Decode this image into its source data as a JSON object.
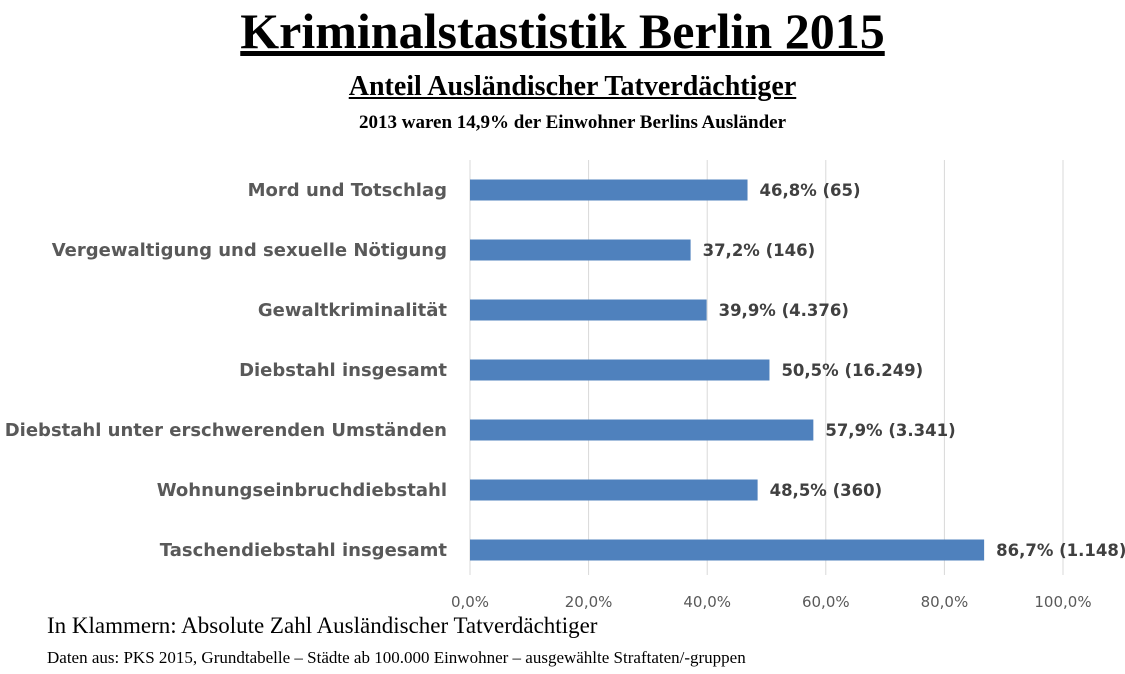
{
  "title": "Kriminalstastistik Berlin 2015",
  "subtitle": "Anteil Ausländischer Tatverdächtiger",
  "note": "2013 waren 14,9% der Einwohner Berlins Ausländer",
  "footnote_1": "In Klammern: Absolute Zahl Ausländischer Tatverdächtiger",
  "footnote_2": "Daten aus: PKS 2015, Grundtabelle – Städte ab 100.000 Einwohner – ausgewählte Straftaten/-gruppen",
  "chart_data": {
    "type": "bar",
    "orientation": "horizontal",
    "categories": [
      "Mord und Totschlag",
      "Vergewaltigung und sexuelle Nötigung",
      "Gewaltkriminalität",
      "Diebstahl insgesamt",
      "Diebstahl unter erschwerenden Umständen",
      "Wohnungseinbruchdiebstahl",
      "Taschendiebstahl insgesamt"
    ],
    "values": [
      46.8,
      37.2,
      39.9,
      50.5,
      57.9,
      48.5,
      86.7
    ],
    "data_labels": [
      "46,8% (65)",
      "37,2% (146)",
      "39,9% (4.376)",
      "50,5% (16.249)",
      "57,9% (3.341)",
      "48,5% (360)",
      "86,7% (1.148)"
    ],
    "x_ticks": [
      "0,0%",
      "20,0%",
      "40,0%",
      "60,0%",
      "80,0%",
      "100,0%"
    ],
    "xlim": [
      0,
      100
    ],
    "grid": true,
    "bar_color": "#4f81bd",
    "grid_color": "#d9d9d9"
  }
}
